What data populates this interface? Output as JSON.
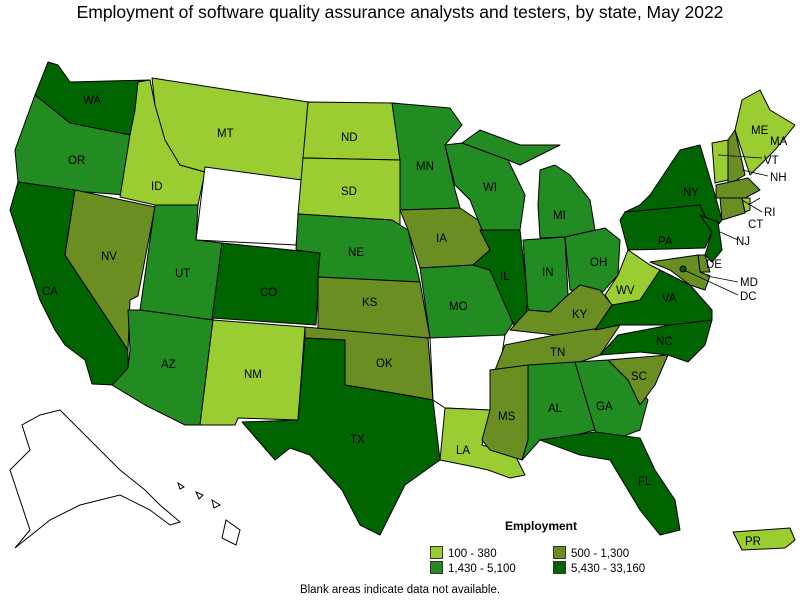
{
  "title": "Employment of software quality assurance analysts and testers, by state, May 2022",
  "footnote": "Blank areas indicate data not available.",
  "legend": {
    "title": "Employment",
    "bins": [
      {
        "label": "100 - 380",
        "color": "#9acd32"
      },
      {
        "label": "500 - 1,300",
        "color": "#6b8e23"
      },
      {
        "label": "1,430 - 5,100",
        "color": "#228b22"
      },
      {
        "label": "5,430 - 33,160",
        "color": "#006400"
      }
    ]
  },
  "chart_data": {
    "type": "choropleth",
    "title": "Employment of software quality assurance analysts and testers, by state, May 2022",
    "legend_title": "Employment",
    "bins": [
      "100 - 380",
      "500 - 1,300",
      "1,430 - 5,100",
      "5,430 - 33,160"
    ],
    "states": {
      "WA": 3,
      "OR": 2,
      "CA": 3,
      "NV": 1,
      "ID": 0,
      "MT": 0,
      "WY": null,
      "UT": 2,
      "AZ": 2,
      "CO": 3,
      "NM": 0,
      "ND": 0,
      "SD": 0,
      "NE": 2,
      "KS": 1,
      "OK": 1,
      "TX": 3,
      "MN": 2,
      "IA": 1,
      "MO": 2,
      "AR": null,
      "LA": 0,
      "WI": 2,
      "IL": 3,
      "MI": 2,
      "IN": 2,
      "OH": 2,
      "KY": 1,
      "TN": 1,
      "MS": 1,
      "AL": 2,
      "GA": 2,
      "FL": 3,
      "SC": 1,
      "NC": 3,
      "VA": 3,
      "WV": 0,
      "PA": 3,
      "NY": 3,
      "VT": 0,
      "NH": 1,
      "ME": 0,
      "MA": 1,
      "CT": 1,
      "RI": 0,
      "NJ": 3,
      "DE": 1,
      "MD": 1,
      "DC": 3,
      "AK": null,
      "HI": null,
      "PR": 0
    }
  },
  "labels": {
    "WA": "WA",
    "OR": "OR",
    "CA": "CA",
    "NV": "NV",
    "ID": "ID",
    "MT": "MT",
    "UT": "UT",
    "AZ": "AZ",
    "CO": "CO",
    "NM": "NM",
    "ND": "ND",
    "SD": "SD",
    "NE": "NE",
    "KS": "KS",
    "OK": "OK",
    "TX": "TX",
    "MN": "MN",
    "IA": "IA",
    "MO": "MO",
    "LA": "LA",
    "WI": "WI",
    "IL": "IL",
    "MI": "MI",
    "IN": "IN",
    "OH": "OH",
    "KY": "KY",
    "TN": "TN",
    "MS": "MS",
    "AL": "AL",
    "GA": "GA",
    "FL": "FL",
    "SC": "SC",
    "NC": "NC",
    "VA": "VA",
    "WV": "WV",
    "PA": "PA",
    "NY": "NY",
    "VT": "VT",
    "NH": "NH",
    "ME": "ME",
    "MA": "MA",
    "CT": "CT",
    "RI": "RI",
    "NJ": "NJ",
    "DE": "DE",
    "MD": "MD",
    "DC": "DC",
    "PR": "PR"
  }
}
